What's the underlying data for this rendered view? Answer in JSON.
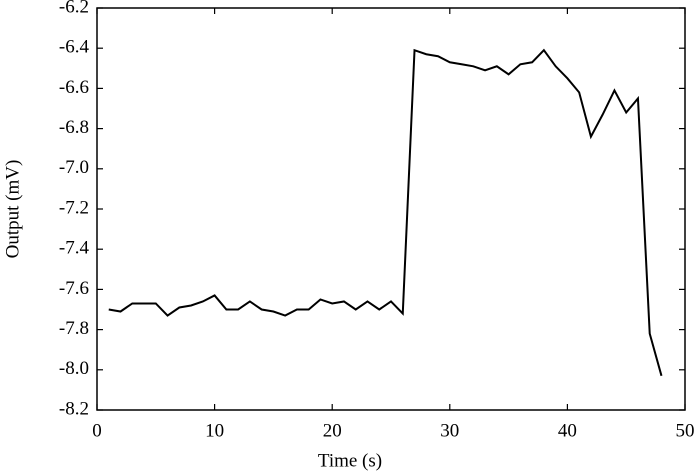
{
  "chart_data": {
    "type": "line",
    "x_label": "Time (s)",
    "y_label": "Output (mV)",
    "x": [
      1,
      2,
      3,
      4,
      5,
      6,
      7,
      8,
      9,
      10,
      11,
      12,
      13,
      14,
      15,
      16,
      17,
      18,
      19,
      20,
      21,
      22,
      23,
      24,
      25,
      26,
      27,
      28,
      29,
      30,
      31,
      32,
      33,
      34,
      35,
      36,
      37,
      38,
      39,
      40,
      41,
      42,
      43,
      44,
      45,
      46,
      47,
      48
    ],
    "series": [
      {
        "color": "#000000",
        "values": [
          -7.7,
          -7.71,
          -7.67,
          -7.67,
          -7.67,
          -7.73,
          -7.69,
          -7.68,
          -7.66,
          -7.63,
          -7.7,
          -7.7,
          -7.66,
          -7.7,
          -7.71,
          -7.73,
          -7.7,
          -7.7,
          -7.65,
          -7.67,
          -7.66,
          -7.7,
          -7.66,
          -7.7,
          -7.66,
          -7.72,
          -6.41,
          -6.43,
          -6.44,
          -6.47,
          -6.48,
          -6.49,
          -6.51,
          -6.49,
          -6.53,
          -6.48,
          -6.47,
          -6.41,
          -6.49,
          -6.55,
          -6.62,
          -6.84,
          -6.73,
          -6.61,
          -6.72,
          -6.65,
          -7.82,
          -8.03
        ]
      }
    ],
    "xlim": [
      0,
      50
    ],
    "xticks": [
      0,
      10,
      20,
      30,
      40,
      50
    ],
    "ylim": [
      -8.2,
      -6.2
    ],
    "yticks": [
      -8.2,
      {
        "value": -8.0,
        "label": "-8.0"
      },
      -7.8,
      -7.6,
      -7.4,
      -7.2,
      {
        "value": -7.0,
        "label": "-7.0"
      },
      -6.8,
      -6.6,
      -6.4,
      -6.2
    ],
    "grid": false
  }
}
